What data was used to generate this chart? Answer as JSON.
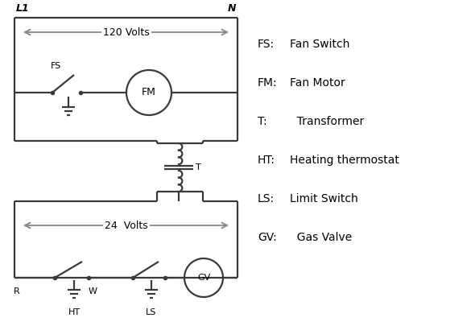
{
  "background_color": "#ffffff",
  "line_color": "#3a3a3a",
  "arrow_color": "#888888",
  "text_color": "#000000",
  "legend_items": [
    [
      "FS:",
      "Fan Switch"
    ],
    [
      "FM:",
      "Fan Motor"
    ],
    [
      "T:",
      "  Transformer"
    ],
    [
      "HT:",
      "Heating thermostat"
    ],
    [
      "LS:",
      "Limit Switch"
    ],
    [
      "GV:",
      "  Gas Valve"
    ]
  ],
  "figsize": [
    5.9,
    4.0
  ],
  "dpi": 100
}
